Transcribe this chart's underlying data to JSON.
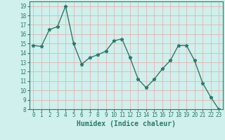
{
  "x": [
    0,
    1,
    2,
    3,
    4,
    5,
    6,
    7,
    8,
    9,
    10,
    11,
    12,
    13,
    14,
    15,
    16,
    17,
    18,
    19,
    20,
    21,
    22,
    23
  ],
  "y": [
    14.8,
    14.7,
    16.5,
    16.8,
    19.0,
    15.0,
    12.8,
    13.5,
    13.8,
    14.2,
    15.3,
    15.5,
    13.5,
    11.2,
    10.3,
    11.2,
    12.3,
    13.2,
    14.8,
    14.8,
    13.2,
    10.8,
    9.3,
    8.0
  ],
  "line_color": "#2d7a6a",
  "marker": "*",
  "marker_size": 3.5,
  "bg_color": "#cff0ec",
  "grid_color": "#e8a8a8",
  "xlabel": "Humidex (Indice chaleur)",
  "xlabel_fontsize": 7,
  "ylim": [
    8,
    19.5
  ],
  "xlim": [
    -0.5,
    23.5
  ],
  "yticks": [
    8,
    9,
    10,
    11,
    12,
    13,
    14,
    15,
    16,
    17,
    18,
    19
  ],
  "xticks": [
    0,
    1,
    2,
    3,
    4,
    5,
    6,
    7,
    8,
    9,
    10,
    11,
    12,
    13,
    14,
    15,
    16,
    17,
    18,
    19,
    20,
    21,
    22,
    23
  ],
  "tick_fontsize": 5.5,
  "line_width": 1.0
}
